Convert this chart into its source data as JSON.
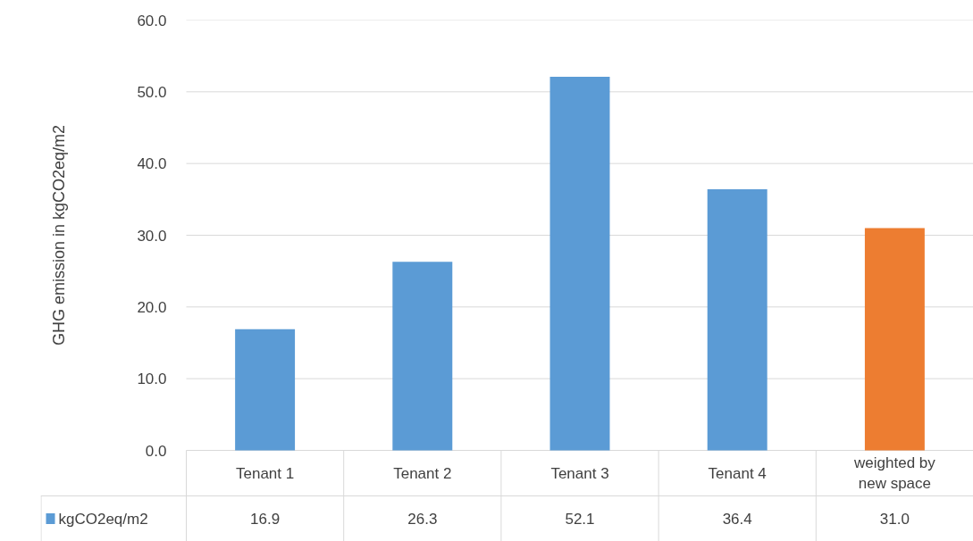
{
  "chart_data": {
    "type": "bar",
    "ylabel": "GHG emission in kgCO2eq/m2",
    "categories": [
      "Tenant 1",
      "Tenant 2",
      "Tenant 3",
      "Tenant 4",
      "weighted by new space"
    ],
    "series": [
      {
        "name": "kgCO2eq/m2",
        "color": "#5b9bd5",
        "values": [
          16.9,
          26.3,
          52.1,
          36.4,
          31.0
        ],
        "value_labels": [
          "16.9",
          "26.3",
          "52.1",
          "36.4",
          "31.0"
        ],
        "colors": [
          "#5b9bd5",
          "#5b9bd5",
          "#5b9bd5",
          "#5b9bd5",
          "#ed7d31"
        ]
      }
    ],
    "ylim": [
      0,
      60
    ],
    "yticks": [
      {
        "value": 0,
        "label": "0.0"
      },
      {
        "value": 10,
        "label": "10.0"
      },
      {
        "value": 20,
        "label": "20.0"
      },
      {
        "value": 30,
        "label": "30.0"
      },
      {
        "value": 40,
        "label": "40.0"
      },
      {
        "value": 50,
        "label": "50.0"
      },
      {
        "value": 60,
        "label": "60.0"
      }
    ],
    "grid": "y",
    "legend": "bottom"
  }
}
